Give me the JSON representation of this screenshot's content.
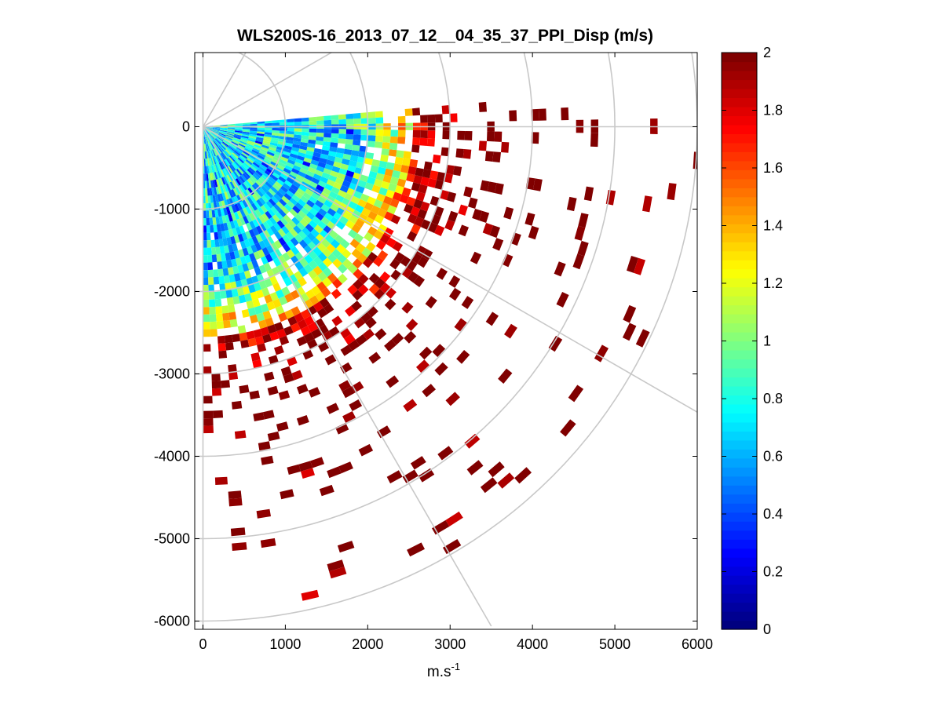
{
  "chart_data": {
    "type": "heatmap",
    "subtype": "polar PPI scan (sector)",
    "title": "WLS200S-16_2013_07_12__04_35_37_PPI_Disp (m/s)",
    "xlabel": "m.s",
    "xlabel_sup": "-1",
    "ylabel": "",
    "xlim": [
      -100,
      6000
    ],
    "ylim": [
      -6100,
      900
    ],
    "x_ticks": [
      "0",
      "1000",
      "2000",
      "3000",
      "4000",
      "5000",
      "6000"
    ],
    "x_tick_values": [
      0,
      1000,
      2000,
      3000,
      4000,
      5000,
      6000
    ],
    "y_ticks": [
      "0",
      "-1000",
      "-2000",
      "-3000",
      "-4000",
      "-5000",
      "-6000"
    ],
    "y_tick_values": [
      0,
      -1000,
      -2000,
      -3000,
      -4000,
      -5000,
      -6000
    ],
    "polar_grid": {
      "range_rings": [
        1000,
        2000,
        3000,
        4000,
        5000,
        6000
      ],
      "spoke_angles_deg": [
        0,
        30,
        60,
        -30,
        -60,
        -90,
        90
      ],
      "color": "#c8c8c8"
    },
    "scan_sector_deg": [
      -90,
      5
    ],
    "colorbar": {
      "colormap": "jet",
      "range": [
        0,
        2
      ],
      "ticks": [
        "0",
        "0.2",
        "0.4",
        "0.6",
        "0.8",
        "1",
        "1.2",
        "1.4",
        "1.6",
        "1.8",
        "2"
      ],
      "tick_values": [
        0,
        0.2,
        0.4,
        0.6,
        0.8,
        1,
        1.2,
        1.4,
        1.6,
        1.8,
        2
      ]
    },
    "value_profile": {
      "description": "Displacement (m/s) by range band in the scan sector",
      "range_m": [
        0,
        1000,
        1500,
        2000,
        2500,
        3000,
        3500,
        4000,
        6000
      ],
      "typical_value": [
        0.75,
        0.75,
        0.7,
        0.9,
        1.4,
        2.0,
        2.0,
        2.0,
        2.0
      ],
      "coverage_fraction": [
        1.0,
        1.0,
        0.98,
        0.9,
        0.7,
        0.35,
        0.15,
        0.08,
        0.04
      ]
    }
  }
}
